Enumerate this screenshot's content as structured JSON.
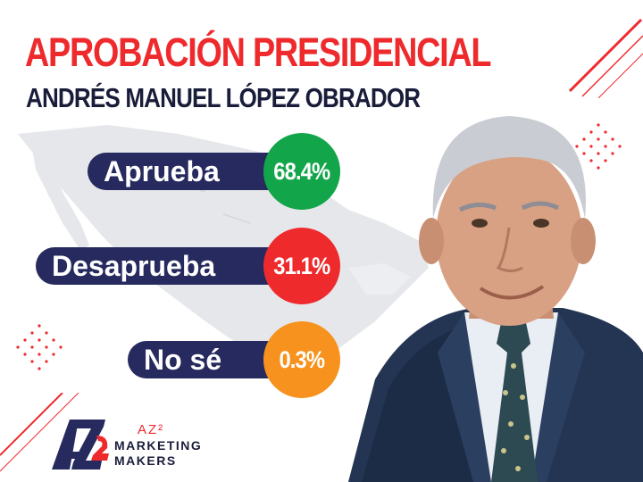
{
  "title": "APROBACIÓN PRESIDENCIAL",
  "subtitle": "ANDRÉS MANUEL LÓPEZ OBRADOR",
  "results": [
    {
      "label": "Aprueba",
      "value": "68.4%",
      "color": "#13a54a"
    },
    {
      "label": "Desaprueba",
      "value": "31.1%",
      "color": "#ee2a2d"
    },
    {
      "label": "No sé",
      "value": "0.3%",
      "color": "#f7921e"
    }
  ],
  "logo": {
    "mark_text": "AZ2",
    "name": "AZ²",
    "line1": "MARKETING",
    "line2": "MAKERS"
  },
  "colors": {
    "title_red": "#ee2a2d",
    "navy": "#262a5e",
    "map_gray": "#e6e7eb"
  },
  "icons": [
    "mexico-map-silhouette",
    "president-photo",
    "az2-logo-icon"
  ]
}
